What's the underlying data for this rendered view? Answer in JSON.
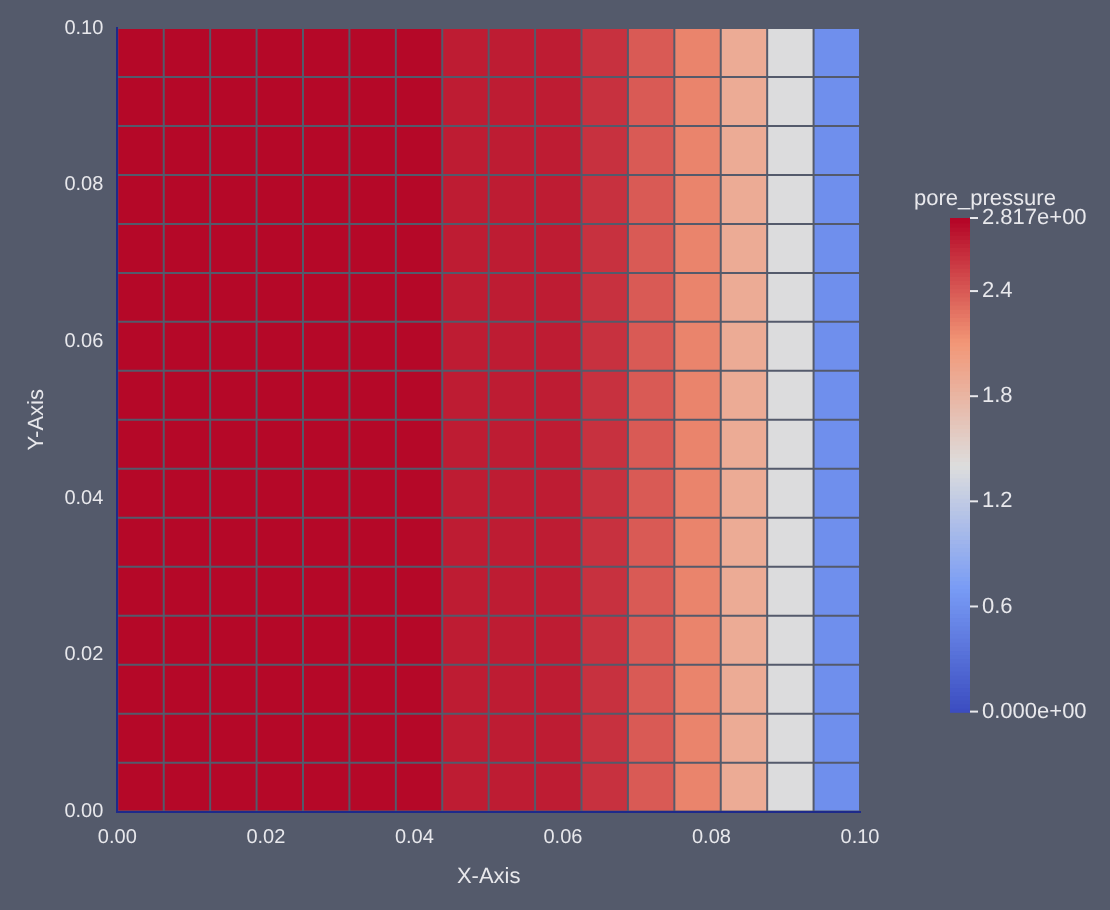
{
  "chart_data": {
    "type": "heatmap",
    "xlabel": "X-Axis",
    "ylabel": "Y-Axis",
    "clabel": "pore_pressure",
    "x": [
      0.003125,
      0.009375,
      0.015625,
      0.021875,
      0.028125,
      0.034375,
      0.040625,
      0.046875,
      0.053125,
      0.059375,
      0.065625,
      0.071875,
      0.078125,
      0.084375,
      0.090625,
      0.096875
    ],
    "y": [
      0.096875,
      0.090625,
      0.084375,
      0.078125,
      0.071875,
      0.065625,
      0.059375,
      0.053125,
      0.046875,
      0.040625,
      0.034375,
      0.028125,
      0.021875,
      0.015625,
      0.009375,
      0.003125
    ],
    "xlim": [
      0,
      0.1
    ],
    "xticks": [
      {
        "value": 0,
        "label": "0.00"
      },
      {
        "value": 0.02,
        "label": "0.02"
      },
      {
        "value": 0.04,
        "label": "0.04"
      },
      {
        "value": 0.06,
        "label": "0.06"
      },
      {
        "value": 0.08,
        "label": "0.08"
      },
      {
        "value": 0.1,
        "label": "0.10"
      }
    ],
    "ylim": [
      0,
      0.1
    ],
    "yticks": [
      {
        "value": 0,
        "label": "0.00"
      },
      {
        "value": 0.02,
        "label": "0.02"
      },
      {
        "value": 0.04,
        "label": "0.04"
      },
      {
        "value": 0.06,
        "label": "0.06"
      },
      {
        "value": 0.08,
        "label": "0.08"
      },
      {
        "value": 0.1,
        "label": "0.10"
      }
    ],
    "clim": [
      0,
      2.817
    ],
    "cticks": [
      {
        "value": 0,
        "label": "0.000e+00"
      },
      0.6,
      1.2,
      1.8,
      {
        "value": 2.4,
        "label": "2.4"
      },
      {
        "value": 2.817,
        "label": "2.817e+00"
      }
    ],
    "cells": [
      [
        2.8,
        2.8,
        2.8,
        2.8,
        2.8,
        2.8,
        2.8,
        2.7,
        2.7,
        2.7,
        2.6,
        2.4,
        2.2,
        1.9,
        1.4,
        0.6
      ],
      [
        2.8,
        2.8,
        2.8,
        2.8,
        2.8,
        2.8,
        2.8,
        2.7,
        2.7,
        2.7,
        2.6,
        2.4,
        2.2,
        1.9,
        1.4,
        0.6
      ],
      [
        2.8,
        2.8,
        2.8,
        2.8,
        2.8,
        2.8,
        2.8,
        2.7,
        2.7,
        2.7,
        2.6,
        2.4,
        2.2,
        1.9,
        1.4,
        0.6
      ],
      [
        2.8,
        2.8,
        2.8,
        2.8,
        2.8,
        2.8,
        2.8,
        2.7,
        2.7,
        2.7,
        2.6,
        2.4,
        2.2,
        1.9,
        1.4,
        0.6
      ],
      [
        2.8,
        2.8,
        2.8,
        2.8,
        2.8,
        2.8,
        2.8,
        2.7,
        2.7,
        2.7,
        2.6,
        2.4,
        2.2,
        1.9,
        1.4,
        0.6
      ],
      [
        2.8,
        2.8,
        2.8,
        2.8,
        2.8,
        2.8,
        2.8,
        2.7,
        2.7,
        2.7,
        2.6,
        2.4,
        2.2,
        1.9,
        1.4,
        0.6
      ],
      [
        2.8,
        2.8,
        2.8,
        2.8,
        2.8,
        2.8,
        2.8,
        2.7,
        2.7,
        2.7,
        2.6,
        2.4,
        2.2,
        1.9,
        1.4,
        0.6
      ],
      [
        2.8,
        2.8,
        2.8,
        2.8,
        2.8,
        2.8,
        2.8,
        2.7,
        2.7,
        2.7,
        2.6,
        2.4,
        2.2,
        1.9,
        1.4,
        0.6
      ],
      [
        2.8,
        2.8,
        2.8,
        2.8,
        2.8,
        2.8,
        2.8,
        2.7,
        2.7,
        2.7,
        2.6,
        2.4,
        2.2,
        1.9,
        1.4,
        0.6
      ],
      [
        2.8,
        2.8,
        2.8,
        2.8,
        2.8,
        2.8,
        2.8,
        2.7,
        2.7,
        2.7,
        2.6,
        2.4,
        2.2,
        1.9,
        1.4,
        0.6
      ],
      [
        2.8,
        2.8,
        2.8,
        2.8,
        2.8,
        2.8,
        2.8,
        2.7,
        2.7,
        2.7,
        2.6,
        2.4,
        2.2,
        1.9,
        1.4,
        0.6
      ],
      [
        2.8,
        2.8,
        2.8,
        2.8,
        2.8,
        2.8,
        2.8,
        2.7,
        2.7,
        2.7,
        2.6,
        2.4,
        2.2,
        1.9,
        1.4,
        0.6
      ],
      [
        2.8,
        2.8,
        2.8,
        2.8,
        2.8,
        2.8,
        2.8,
        2.7,
        2.7,
        2.7,
        2.6,
        2.4,
        2.2,
        1.9,
        1.4,
        0.6
      ],
      [
        2.8,
        2.8,
        2.8,
        2.8,
        2.8,
        2.8,
        2.8,
        2.7,
        2.7,
        2.7,
        2.6,
        2.4,
        2.2,
        1.9,
        1.4,
        0.6
      ],
      [
        2.8,
        2.8,
        2.8,
        2.8,
        2.8,
        2.8,
        2.8,
        2.7,
        2.7,
        2.7,
        2.6,
        2.4,
        2.2,
        1.9,
        1.4,
        0.6
      ],
      [
        2.8,
        2.8,
        2.8,
        2.8,
        2.8,
        2.8,
        2.8,
        2.7,
        2.7,
        2.7,
        2.6,
        2.4,
        2.2,
        1.9,
        1.4,
        0.6
      ]
    ]
  }
}
